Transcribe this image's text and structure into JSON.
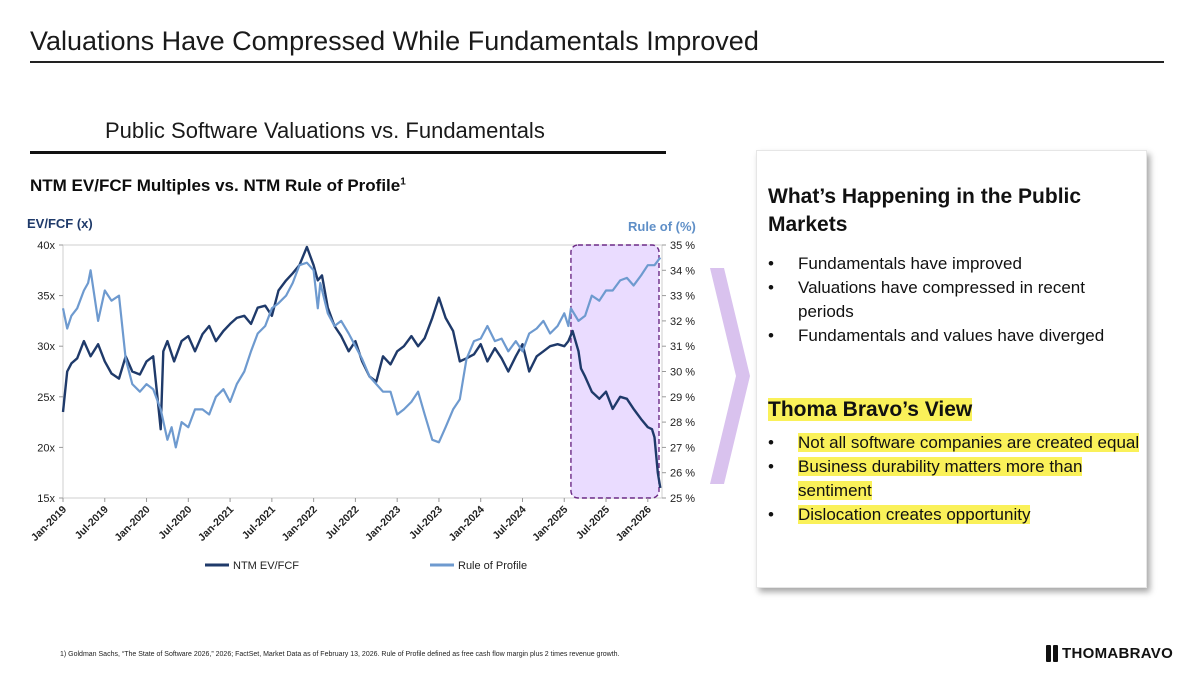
{
  "header": {
    "title": "Valuations Have Compressed While Fundamentals Improved"
  },
  "section": {
    "title": "Public Software Valuations vs. Fundamentals"
  },
  "chart_data": {
    "type": "line",
    "title": "NTM EV/FCF Multiples vs. NTM Rule of Profile",
    "title_superscript": "1",
    "ylabel_left": "EV/FCF (x)",
    "ylabel_right": "Rule of (%)",
    "ylim_left": [
      15,
      40
    ],
    "ylim_right": [
      25,
      35
    ],
    "yticks_left": [
      "40x",
      "35x",
      "30x",
      "25x",
      "20x",
      "15x"
    ],
    "yticks_right": [
      "35 %",
      "34 %",
      "33 %",
      "32 %",
      "31 %",
      "30 %",
      "29 %",
      "28 %",
      "27 %",
      "26 %",
      "25 %"
    ],
    "xlim": [
      2019.0,
      2026.17
    ],
    "x_ticks": [
      "Jan-2019",
      "Jul-2019",
      "Jan-2020",
      "Jul-2020",
      "Jan-2021",
      "Jul-2021",
      "Jan-2022",
      "Jul-2022",
      "Jan-2023",
      "Jul-2023",
      "Jan-2024",
      "Jul-2024",
      "Jan-2025",
      "Jul-2025",
      "Jan-2026"
    ],
    "series": [
      {
        "name": "NTM EV/FCF",
        "axis": "left",
        "color": "#1f3a6a",
        "x": [
          2019.0,
          2019.05,
          2019.1,
          2019.17,
          2019.25,
          2019.33,
          2019.42,
          2019.5,
          2019.58,
          2019.67,
          2019.75,
          2019.83,
          2019.92,
          2020.0,
          2020.08,
          2020.13,
          2020.17,
          2020.2,
          2020.25,
          2020.33,
          2020.42,
          2020.5,
          2020.58,
          2020.67,
          2020.75,
          2020.83,
          2020.92,
          2021.0,
          2021.08,
          2021.17,
          2021.25,
          2021.33,
          2021.42,
          2021.5,
          2021.58,
          2021.67,
          2021.75,
          2021.83,
          2021.92,
          2022.0,
          2022.05,
          2022.1,
          2022.17,
          2022.25,
          2022.33,
          2022.42,
          2022.5,
          2022.58,
          2022.67,
          2022.75,
          2022.83,
          2022.92,
          2023.0,
          2023.08,
          2023.17,
          2023.25,
          2023.33,
          2023.42,
          2023.5,
          2023.58,
          2023.67,
          2023.75,
          2023.83,
          2023.92,
          2024.0,
          2024.08,
          2024.17,
          2024.25,
          2024.33,
          2024.42,
          2024.5,
          2024.58,
          2024.67,
          2024.75,
          2024.83,
          2024.92,
          2025.0,
          2025.05,
          2025.1,
          2025.17,
          2025.2,
          2025.25,
          2025.33,
          2025.42,
          2025.5,
          2025.58,
          2025.67,
          2025.75,
          2025.83,
          2025.92,
          2026.0,
          2026.05,
          2026.08,
          2026.12,
          2026.15
        ],
        "y": [
          23.5,
          27.5,
          28.3,
          28.8,
          30.5,
          29,
          30.2,
          28.5,
          27.3,
          26.8,
          29,
          27.5,
          27.2,
          28.5,
          29,
          25,
          21.8,
          29.5,
          30.5,
          28.5,
          30.5,
          31,
          29.5,
          31.2,
          32,
          30.5,
          31.5,
          32.2,
          32.8,
          33,
          32.2,
          33.8,
          34,
          33,
          35.5,
          36.5,
          37.2,
          38,
          39.8,
          38,
          36.5,
          37,
          33.8,
          32,
          31,
          29.5,
          30.5,
          28.5,
          27,
          26.5,
          29,
          28.2,
          29.5,
          30,
          31,
          30,
          30.8,
          32.8,
          34.8,
          32.8,
          31.5,
          28.5,
          28.8,
          29.2,
          30.2,
          28.5,
          29.8,
          28.8,
          27.5,
          29,
          30.2,
          27.5,
          29,
          29.5,
          30,
          30.2,
          30,
          30.5,
          31.5,
          29.5,
          27.8,
          27,
          25.5,
          24.8,
          25.5,
          23.8,
          25,
          24.8,
          23.8,
          22.8,
          22,
          21.8,
          21,
          17.5,
          16
        ]
      },
      {
        "name": "Rule of Profile",
        "axis": "right",
        "color": "#6e9acf",
        "x": [
          2019.0,
          2019.05,
          2019.1,
          2019.17,
          2019.25,
          2019.3,
          2019.33,
          2019.42,
          2019.5,
          2019.58,
          2019.67,
          2019.75,
          2019.83,
          2019.92,
          2020.0,
          2020.08,
          2020.17,
          2020.25,
          2020.3,
          2020.35,
          2020.42,
          2020.5,
          2020.58,
          2020.67,
          2020.75,
          2020.83,
          2020.92,
          2021.0,
          2021.08,
          2021.17,
          2021.25,
          2021.33,
          2021.42,
          2021.5,
          2021.58,
          2021.67,
          2021.75,
          2021.83,
          2021.92,
          2022.0,
          2022.05,
          2022.08,
          2022.17,
          2022.25,
          2022.33,
          2022.42,
          2022.5,
          2022.58,
          2022.67,
          2022.75,
          2022.83,
          2022.92,
          2023.0,
          2023.08,
          2023.17,
          2023.25,
          2023.33,
          2023.42,
          2023.5,
          2023.58,
          2023.67,
          2023.75,
          2023.83,
          2023.92,
          2024.0,
          2024.08,
          2024.17,
          2024.25,
          2024.33,
          2024.42,
          2024.5,
          2024.58,
          2024.67,
          2024.75,
          2024.83,
          2024.92,
          2025.0,
          2025.05,
          2025.08,
          2025.17,
          2025.25,
          2025.33,
          2025.42,
          2025.5,
          2025.58,
          2025.67,
          2025.75,
          2025.83,
          2025.92,
          2026.0,
          2026.08,
          2026.15
        ],
        "y": [
          32.5,
          31.7,
          32.2,
          32.5,
          33.2,
          33.5,
          34,
          32,
          33.2,
          32.8,
          33,
          30.5,
          29.5,
          29.2,
          29.5,
          29.3,
          28.5,
          27.3,
          27.8,
          27,
          28,
          27.8,
          28.5,
          28.5,
          28.3,
          29,
          29.3,
          28.8,
          29.5,
          30,
          30.8,
          31.5,
          31.8,
          32.5,
          32.7,
          33,
          33.5,
          34.2,
          34.3,
          34,
          32.5,
          33.5,
          32.3,
          31.8,
          32,
          31.5,
          31,
          30.5,
          29.8,
          29.5,
          29.2,
          29.2,
          28.3,
          28.5,
          28.8,
          29.2,
          28.3,
          27.3,
          27.2,
          27.8,
          28.5,
          28.9,
          30.5,
          31.2,
          31.3,
          31.8,
          31.2,
          31.3,
          30.8,
          31.2,
          30.8,
          31.5,
          31.7,
          32,
          31.5,
          31.8,
          32.3,
          31.8,
          32.5,
          32,
          32.2,
          33,
          32.8,
          33.2,
          33.2,
          33.6,
          33.7,
          33.4,
          33.8,
          34.2,
          34.2,
          34.5
        ]
      }
    ],
    "highlight": {
      "x_start": 2025.08,
      "x_end": 2026.17,
      "y_bottom": 15,
      "y_top": 40,
      "fill": "#e6d6ff",
      "stroke": "#6b2a85"
    }
  },
  "panel": {
    "heading": "What’s Happening in the Public Markets",
    "bullets": [
      "Fundamentals have improved",
      "Valuations have compressed in recent periods",
      "Fundamentals and values have diverged"
    ],
    "view_title": "Thoma Bravo’s View",
    "view_bullets": [
      "Not all software companies are created equal",
      "Business durability matters more than sentiment",
      "Dislocation creates opportunity"
    ],
    "highlight_color": "#faf159"
  },
  "footer": {
    "footnote": "1) Goldman Sachs, “The State of Software 2026,” 2026; FactSet, Market Data as of February 13, 2026. Rule of Profile defined as free cash flow margin plus 2 times revenue growth.",
    "logo_text": "THOMABRAVO"
  }
}
